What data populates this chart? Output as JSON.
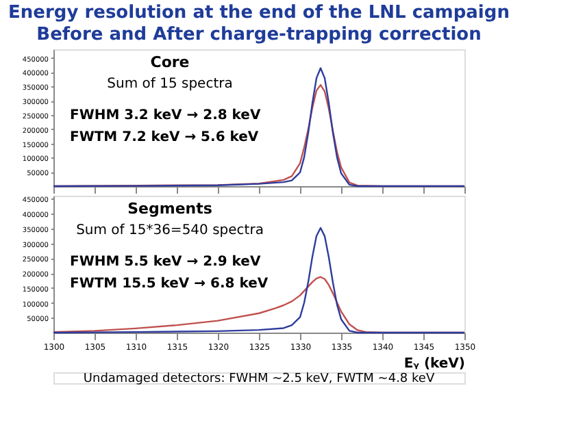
{
  "chart_data": [
    {
      "type": "line",
      "title": "Energy resolution at the end of the LNL campaign",
      "subtitle": "Before and After charge-trapping correction",
      "annotations": [
        "Core",
        "Sum of 15 spectra",
        "FWHM  3.2 keV → 2.8 keV",
        "FWTM  7.2 keV → 5.6 keV"
      ],
      "series": [
        {
          "color": "#c0504d",
          "x": [
            1300,
            1310,
            1320,
            1325,
            1328,
            1329,
            1330,
            1330.5,
            1331,
            1331.5,
            1332,
            1332.5,
            1333,
            1333.5,
            1334,
            1334.5,
            1335,
            1336,
            1337,
            1340,
            1350
          ],
          "values": [
            0,
            2000,
            4000,
            9000,
            22000,
            35000,
            80000,
            135000,
            200000,
            275000,
            335000,
            355000,
            332000,
            271000,
            193000,
            120000,
            66000,
            13000,
            2000,
            0,
            0
          ]
        },
        {
          "color": "#2e3c9e",
          "x": [
            1300,
            1310,
            1320,
            1325,
            1328,
            1329,
            1330,
            1330.5,
            1331,
            1331.5,
            1332,
            1332.5,
            1333,
            1333.5,
            1334,
            1334.5,
            1335,
            1336,
            1337,
            1340,
            1350
          ],
          "values": [
            0,
            1000,
            3000,
            8000,
            14000,
            20000,
            48000,
            101000,
            187000,
            291000,
            379000,
            414000,
            379000,
            291000,
            187000,
            101000,
            45000,
            5000,
            0,
            0,
            0
          ]
        }
      ],
      "xlim": [
        1300,
        1350
      ],
      "xticks": [
        1300,
        1305,
        1310,
        1315,
        1320,
        1325,
        1330,
        1335,
        1340,
        1345,
        1350
      ],
      "ylim": [
        0,
        480000
      ],
      "yticks": [
        50000,
        100000,
        150000,
        200000,
        250000,
        300000,
        350000,
        400000,
        450000
      ],
      "tick_labels": "y",
      "grid": false,
      "legend": false
    },
    {
      "type": "line",
      "xlabel": "Eᵧ (keV)",
      "annotations": [
        "Segments",
        "Sum of 15*36=540 spectra",
        "FWHM  5.5 keV → 2.9 keV",
        "FWTM  15.5 keV → 6.8 keV",
        "Undamaged detectors: FWHM ~2.5 keV,  FWTM ~4.8 keV"
      ],
      "series": [
        {
          "color": "#c0504d",
          "x": [
            1300,
            1305,
            1310,
            1315,
            1320,
            1325,
            1327,
            1328,
            1329,
            1330,
            1330.5,
            1331,
            1331.5,
            1332,
            1332.5,
            1333,
            1333.5,
            1334,
            1334.5,
            1335,
            1336,
            1337,
            1338,
            1340,
            1350
          ],
          "values": [
            2000,
            6000,
            14000,
            25000,
            40000,
            65000,
            82000,
            92000,
            105000,
            125000,
            140000,
            155000,
            170000,
            182000,
            187000,
            180000,
            160000,
            132000,
            101000,
            71000,
            28000,
            8000,
            2000,
            0,
            0
          ]
        },
        {
          "color": "#2e3c9e",
          "x": [
            1300,
            1310,
            1320,
            1325,
            1328,
            1329,
            1330,
            1330.5,
            1331,
            1331.5,
            1332,
            1332.5,
            1333,
            1333.5,
            1334,
            1334.5,
            1335,
            1336,
            1337,
            1340,
            1350
          ],
          "values": [
            0,
            2000,
            5000,
            9000,
            15000,
            25000,
            52000,
            100000,
            170000,
            255000,
            325000,
            352000,
            324000,
            253000,
            168000,
            94000,
            45000,
            6000,
            0,
            0,
            0
          ]
        }
      ],
      "xlim": [
        1300,
        1350
      ],
      "xticks": [
        1300,
        1305,
        1310,
        1315,
        1320,
        1325,
        1330,
        1335,
        1340,
        1345,
        1350
      ],
      "ylim": [
        0,
        460000
      ],
      "yticks": [
        50000,
        100000,
        150000,
        200000,
        250000,
        300000,
        350000,
        400000,
        450000
      ],
      "grid": false,
      "legend": false
    }
  ]
}
